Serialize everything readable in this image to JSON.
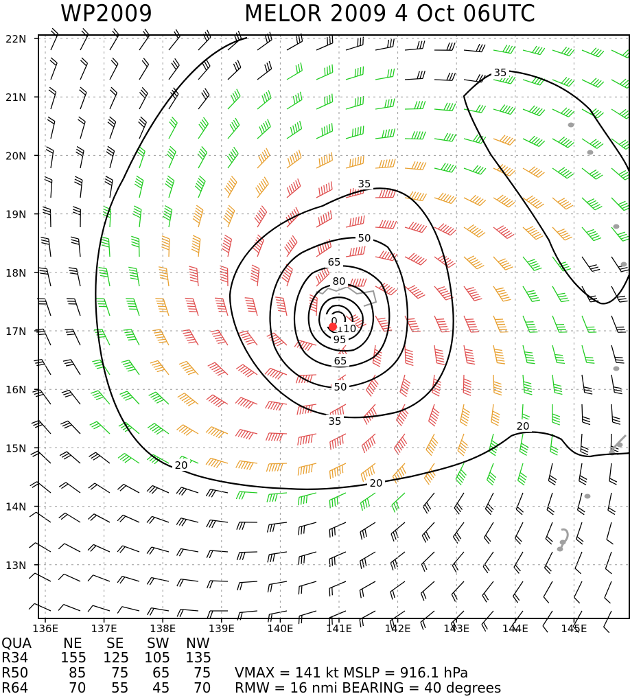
{
  "title": {
    "left": "WP2009",
    "right": "MELOR 2009   4 Oct 06UTC"
  },
  "map": {
    "lat_labels": [
      "22N",
      "21N",
      "20N",
      "19N",
      "18N",
      "17N",
      "16N",
      "15N",
      "14N",
      "13N"
    ],
    "lon_labels": [
      "136E",
      "137E",
      "138E",
      "139E",
      "140E",
      "141E",
      "142E",
      "143E",
      "144E",
      "145E"
    ],
    "contour_labels": [
      "20",
      "20",
      "20",
      "35",
      "35",
      "35",
      "50",
      "50",
      "65",
      "65",
      "80",
      "95",
      "110",
      "0"
    ],
    "colors": {
      "below_34kt": "#000000",
      "wind_34_50": "#22cc22",
      "wind_50_64": "#e8a030",
      "wind_64_plus": "#e05050",
      "center": "#ff3333",
      "land": "#a0a0a0"
    }
  },
  "radii_table": {
    "headers": [
      "QUA",
      "NE",
      "SE",
      "SW",
      "NW"
    ],
    "rows": [
      {
        "label": "R34",
        "values": [
          "155",
          "125",
          "105",
          "135"
        ]
      },
      {
        "label": "R50",
        "values": [
          "85",
          "75",
          "65",
          "75"
        ]
      },
      {
        "label": "R64",
        "values": [
          "70",
          "55",
          "45",
          "70"
        ]
      }
    ]
  },
  "stats": {
    "line1": "VMAX  =   141 kt MSLP  =  916.1 hPa",
    "line2": "RMW   =    16 nmi BEARING  =    40 degrees"
  }
}
